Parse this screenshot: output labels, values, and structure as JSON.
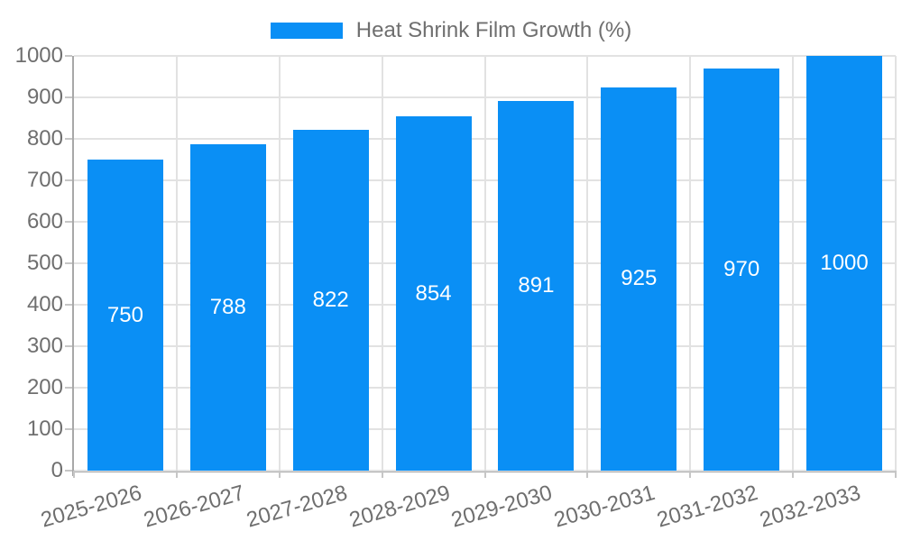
{
  "colors": {
    "bar": "#0a8ff5",
    "bar_label": "#ffffff",
    "grid": "#e2e2e2",
    "axis": "#a8a8a8",
    "tick": "#c6c6c6",
    "text": "#6f6f6f",
    "background": "#ffffff"
  },
  "legend": {
    "label": "Heat Shrink Film Growth (%)"
  },
  "chart_data": {
    "type": "bar",
    "title": "Heat Shrink Film Growth (%)",
    "categories": [
      "2025-2026",
      "2026-2027",
      "2027-2028",
      "2028-2029",
      "2029-2030",
      "2030-2031",
      "2031-2032",
      "2032-2033"
    ],
    "values": [
      750,
      788,
      822,
      854,
      891,
      925,
      970,
      1000
    ],
    "xlabel": "",
    "ylabel": "",
    "ylim": [
      0,
      1000
    ],
    "yticks": [
      0,
      100,
      200,
      300,
      400,
      500,
      600,
      700,
      800,
      900,
      1000
    ],
    "grid": true,
    "vertical_grid": true,
    "legend_position": "top-center",
    "bar_value_labels": "inside-center",
    "x_label_rotation_deg": -16
  }
}
